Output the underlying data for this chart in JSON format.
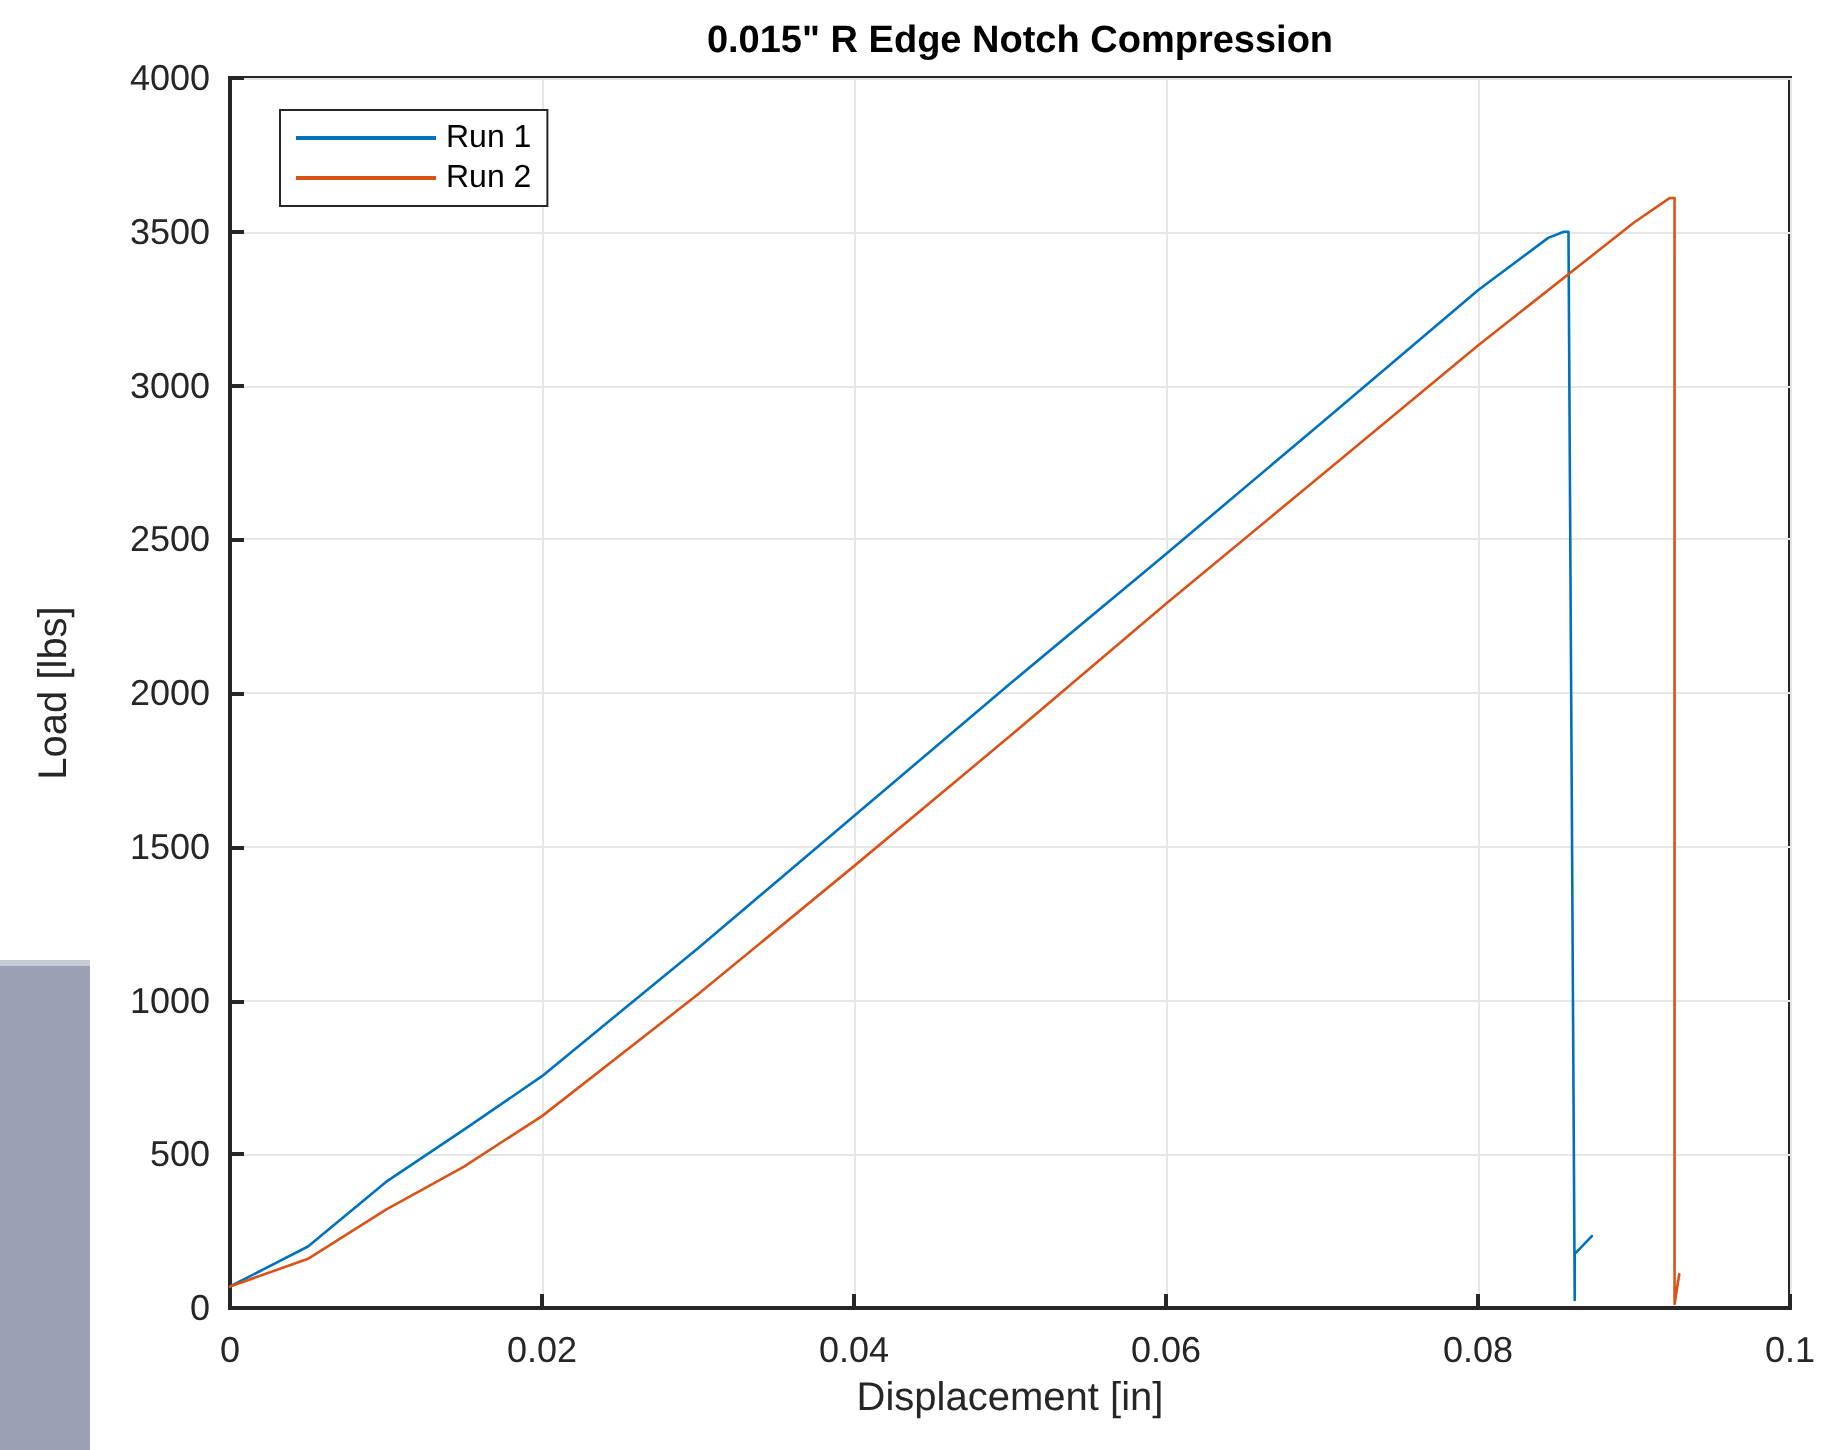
{
  "chart_data": {
    "type": "line",
    "title": "0.015\" R Edge Notch Compression",
    "xlabel": "Displacement [in]",
    "ylabel": "Load [lbs]",
    "xlim": [
      0,
      0.1
    ],
    "xticks": [
      0,
      0.02,
      0.04,
      0.06,
      0.08,
      0.1
    ],
    "ylim": [
      0,
      4000
    ],
    "yticks": [
      0,
      500,
      1000,
      1500,
      2000,
      2500,
      3000,
      3500,
      4000
    ],
    "grid": true,
    "legend": "top left",
    "marker": "none",
    "line_style": "solid",
    "series": [
      {
        "name": "Run 1",
        "color": "#0072bd",
        "x": [
          0,
          0.005,
          0.01,
          0.015,
          0.02,
          0.03,
          0.04,
          0.05,
          0.06,
          0.07,
          0.08,
          0.0845,
          0.0855,
          0.0858,
          0.0862,
          0.0862,
          0.0873
        ],
        "values": [
          70,
          200,
          410,
          580,
          754,
          1170,
          1600,
          2030,
          2452,
          2880,
          3310,
          3480,
          3500,
          3500,
          26,
          176,
          234
        ]
      },
      {
        "name": "Run 2",
        "color": "#d95319",
        "x": [
          0,
          0.005,
          0.01,
          0.015,
          0.02,
          0.03,
          0.04,
          0.05,
          0.06,
          0.07,
          0.08,
          0.09,
          0.0923,
          0.0926,
          0.0926,
          0.0929
        ],
        "values": [
          70,
          160,
          320,
          460,
          624,
          1020,
          1437,
          1860,
          2290,
          2710,
          3130,
          3530,
          3610,
          3610,
          13,
          110
        ]
      }
    ]
  }
}
